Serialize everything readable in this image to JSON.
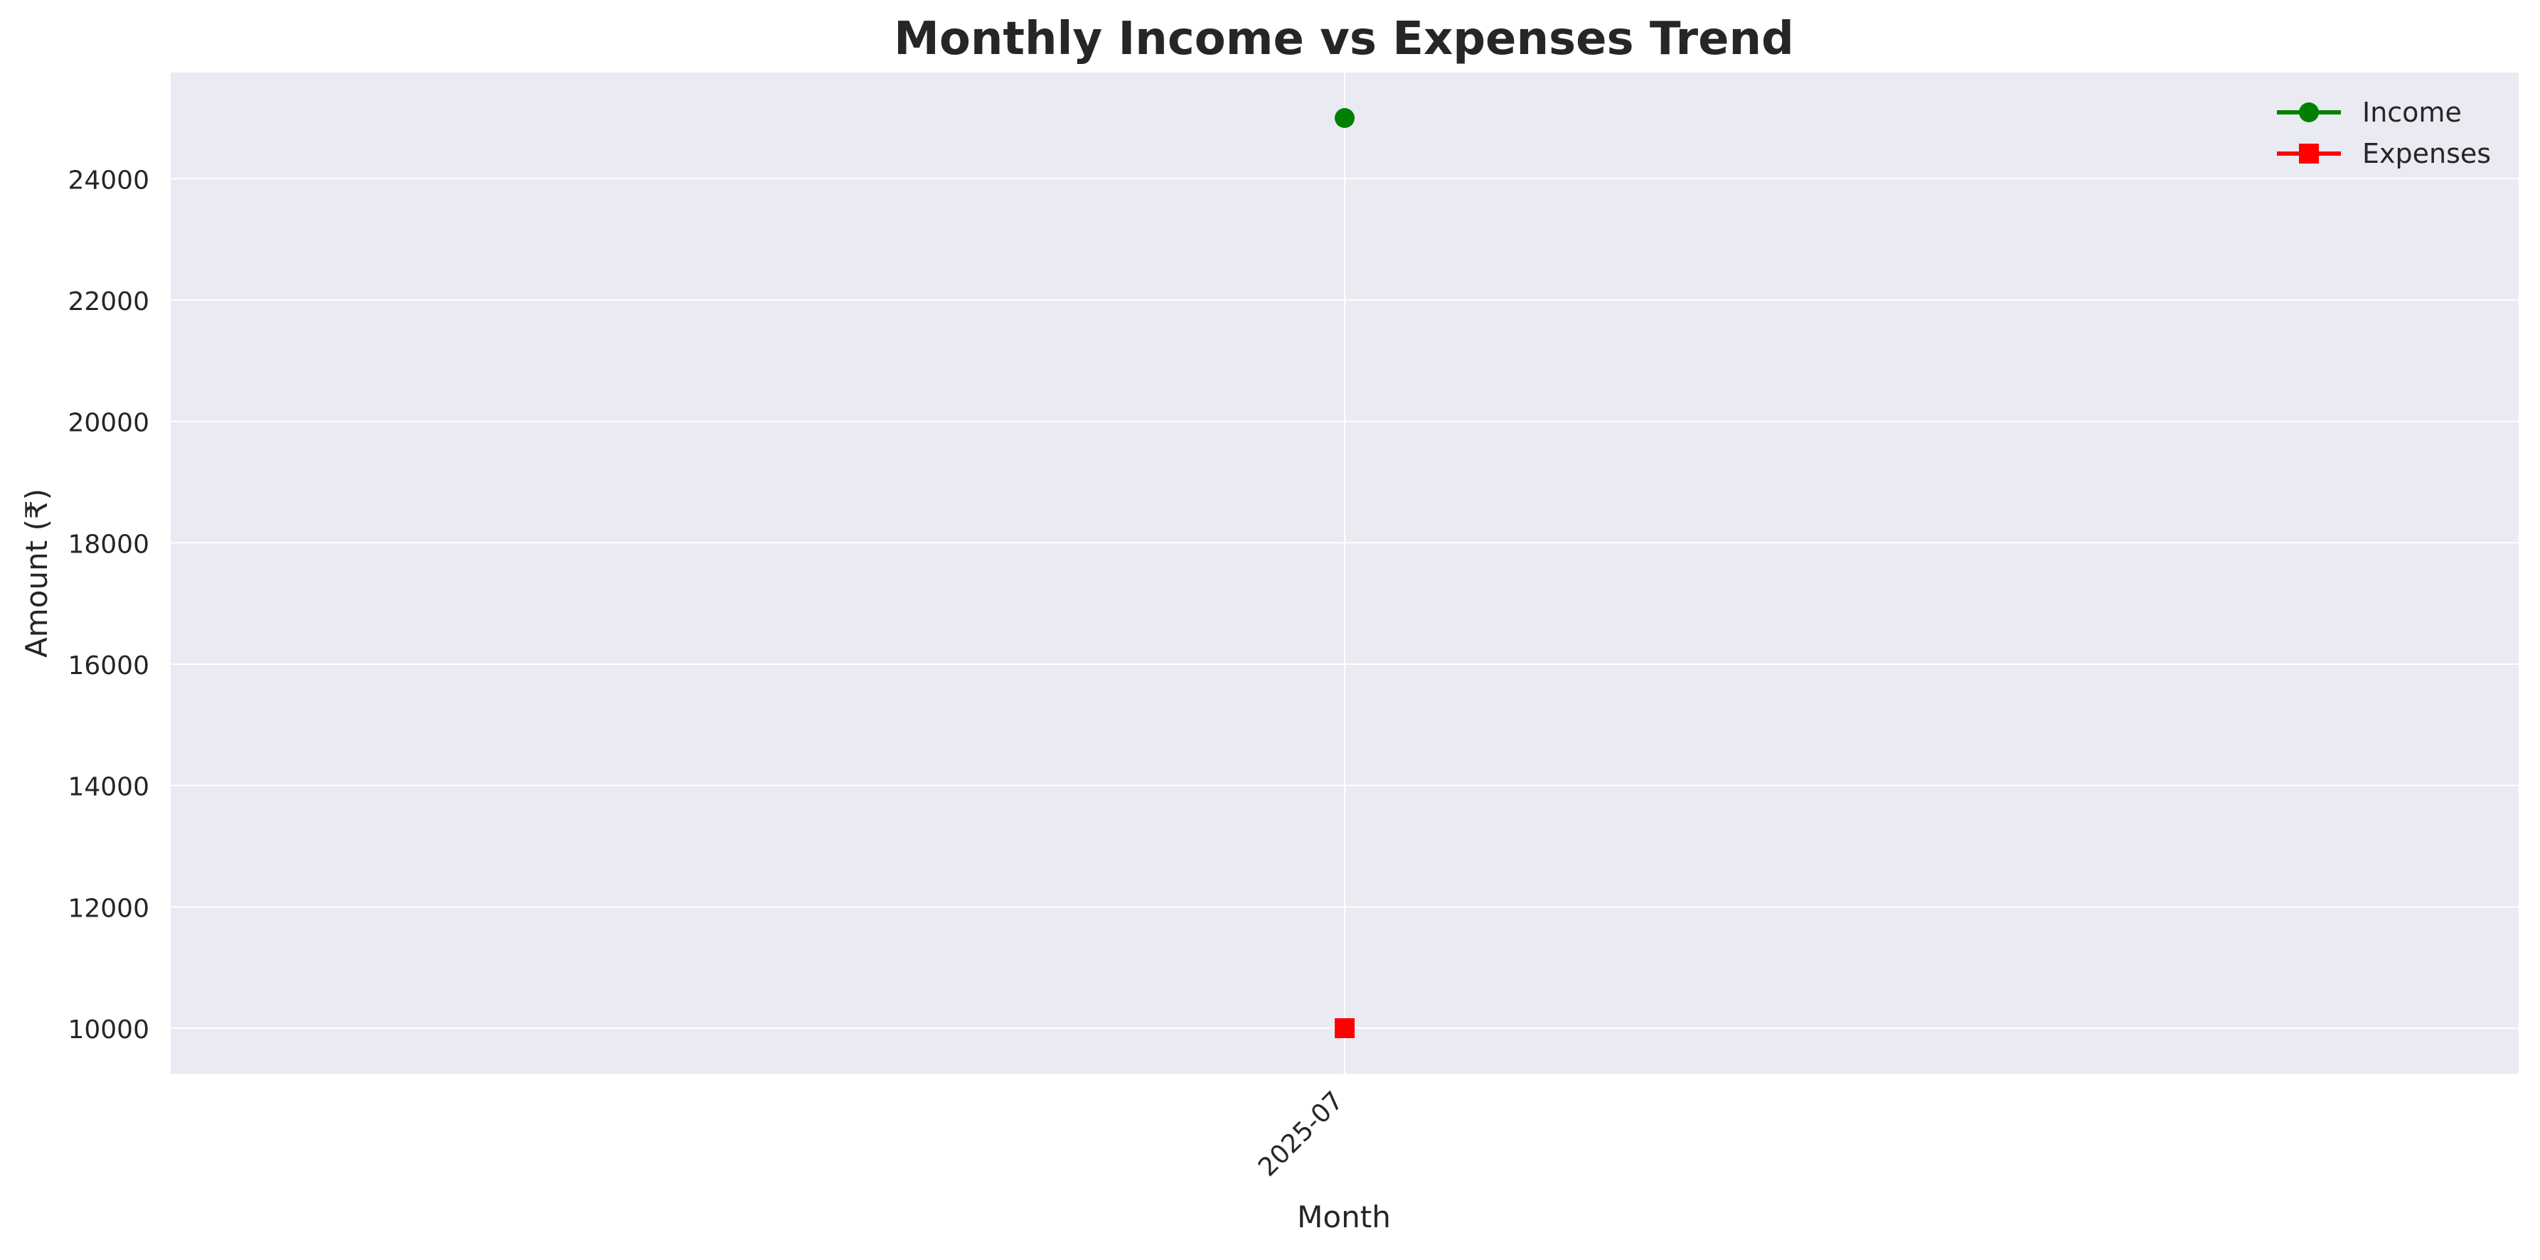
{
  "chart_data": {
    "type": "line",
    "title": "Monthly Income vs Expenses Trend",
    "xlabel": "Month",
    "ylabel": "Amount (₹)",
    "categories": [
      "2025-07"
    ],
    "series": [
      {
        "name": "Income",
        "values": [
          25000
        ],
        "color": "#008000",
        "marker": "circle"
      },
      {
        "name": "Expenses",
        "values": [
          10000
        ],
        "color": "#ff0000",
        "marker": "square"
      }
    ],
    "ylim": [
      9250,
      25750
    ],
    "yticks": [
      10000,
      12000,
      14000,
      16000,
      18000,
      20000,
      22000,
      24000
    ],
    "xtick_rotation": -45,
    "grid": true,
    "legend_position": "top-right",
    "colors": {
      "plot_background": "#eaeaf2",
      "grid": "#ffffff",
      "text": "#262626"
    }
  }
}
